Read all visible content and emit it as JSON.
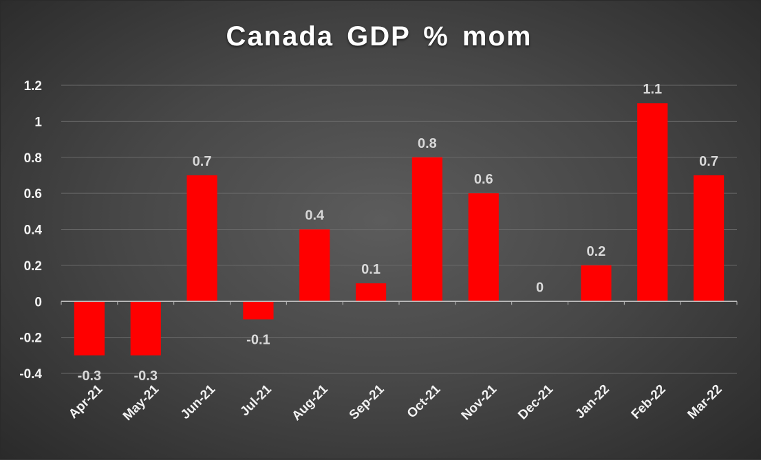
{
  "chart_data": {
    "type": "bar",
    "title": "Canada GDP % mom",
    "categories": [
      "Apr-21",
      "May-21",
      "Jun-21",
      "Jul-21",
      "Aug-21",
      "Sep-21",
      "Oct-21",
      "Nov-21",
      "Dec-21",
      "Jan-22",
      "Feb-22",
      "Mar-22"
    ],
    "values": [
      -0.3,
      -0.3,
      0.7,
      -0.1,
      0.4,
      0.1,
      0.8,
      0.6,
      0,
      0.2,
      1.1,
      0.7
    ],
    "data_labels": [
      "-0.3",
      "-0.3",
      "0.7",
      "-0.1",
      "0.4",
      "0.1",
      "0.8",
      "0.6",
      "0",
      "0.2",
      "1.1",
      "0.7"
    ],
    "y_ticks": [
      "-0.4",
      "-0.2",
      "0",
      "0.2",
      "0.4",
      "0.6",
      "0.8",
      "1",
      "1.2"
    ],
    "ylim": [
      -0.4,
      1.2
    ],
    "grid": true,
    "legend": "none",
    "xlabel": "",
    "ylabel": "",
    "colors": {
      "bar": "#ff0000",
      "gridline": "#6a6a6a",
      "axis": "#bfbfbf",
      "text": "#f2f2f2"
    }
  }
}
